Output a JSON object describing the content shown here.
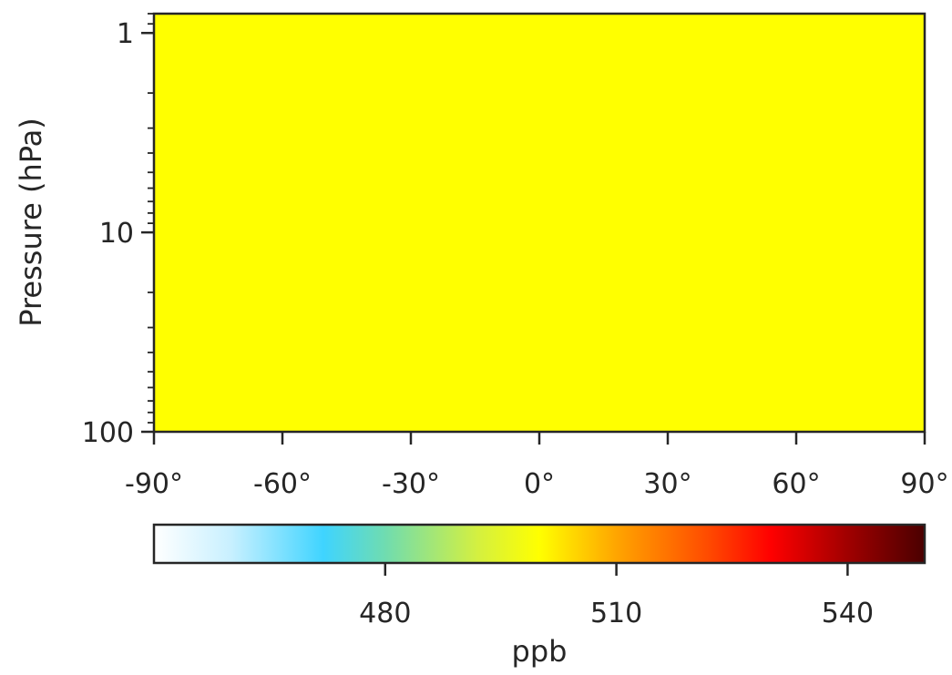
{
  "chart_data": {
    "type": "heatmap",
    "title": "",
    "xlabel": "",
    "ylabel": "Pressure (hPa)",
    "x_ticks": [
      {
        "value": -90,
        "label": "-90°"
      },
      {
        "value": -60,
        "label": "-60°"
      },
      {
        "value": -30,
        "label": "-30°"
      },
      {
        "value": 0,
        "label": "0°"
      },
      {
        "value": 30,
        "label": "30°"
      },
      {
        "value": 60,
        "label": "60°"
      },
      {
        "value": 90,
        "label": "90°"
      }
    ],
    "xlim": [
      -90,
      90
    ],
    "y_scale": "log",
    "y_inverted": true,
    "y_ticks": [
      {
        "value": 1,
        "label": "1"
      },
      {
        "value": 10,
        "label": "10"
      },
      {
        "value": 100,
        "label": "100"
      }
    ],
    "ylim": [
      100,
      0.8
    ],
    "field": {
      "uniform_value": 500,
      "color": "#ffff00"
    },
    "colorbar": {
      "label": "ppb",
      "range": [
        450,
        550
      ],
      "ticks": [
        {
          "value": 480,
          "label": "480"
        },
        {
          "value": 510,
          "label": "510"
        },
        {
          "value": 540,
          "label": "540"
        }
      ],
      "colors": [
        "#ffffff",
        "#3fd4ff",
        "#ffff00",
        "#ff0000",
        "#4a0000"
      ]
    },
    "grid": false
  }
}
